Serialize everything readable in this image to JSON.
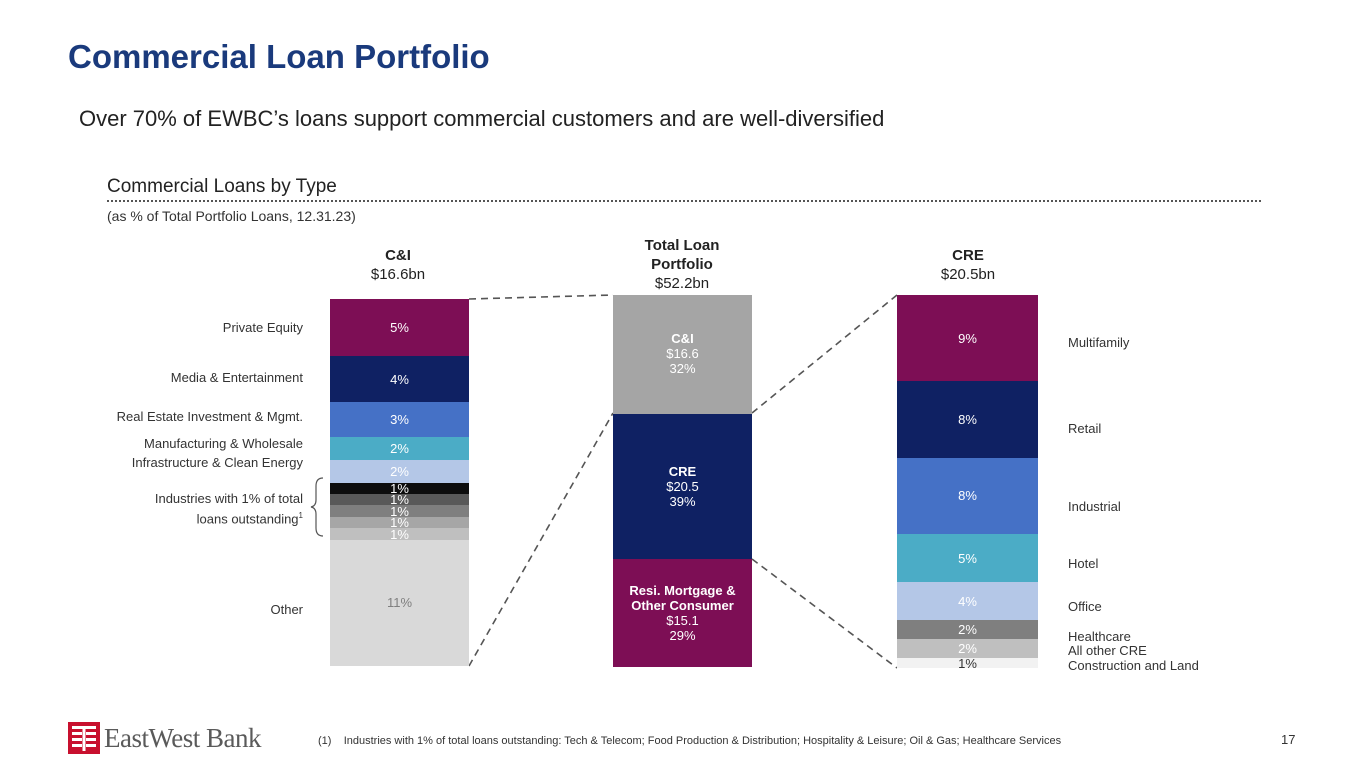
{
  "header": {
    "title": "Commercial Loan Portfolio",
    "subtitle": "Over 70% of EWBC’s loans support commercial customers and are well-diversified"
  },
  "section": {
    "title": "Commercial Loans by Type",
    "note": "(as % of Total Portfolio Loans, 12.31.23)"
  },
  "chart_data": [
    {
      "type": "bar",
      "stacked": true,
      "title": "C&I",
      "amount": "$16.6bn",
      "categories": [
        "Private Equity",
        "Media & Entertainment",
        "Real Estate Investment & Mgmt.",
        "Manufacturing & Wholesale",
        "Infrastructure & Clean Energy",
        "Industries with 1% of total loans outstanding",
        "Industries with 1% of total loans outstanding",
        "Industries with 1% of total loans outstanding",
        "Industries with 1% of total loans outstanding",
        "Industries with 1% of total loans outstanding",
        "Other"
      ],
      "values": [
        5,
        4,
        3,
        2,
        2,
        1,
        1,
        1,
        1,
        1,
        11
      ],
      "value_labels": [
        "5%",
        "4%",
        "3%",
        "2%",
        "2%",
        "1%",
        "1%",
        "1%",
        "1%",
        "1%",
        "11%"
      ],
      "colors": [
        "#7d0e55",
        "#0f2163",
        "#4571c6",
        "#4bacc6",
        "#b4c7e7",
        "#0d0d0d",
        "#595959",
        "#7f7f7f",
        "#a6a6a6",
        "#bfbfbf",
        "#d9d9d9"
      ],
      "text_colors": [
        "#ffffff",
        "#ffffff",
        "#ffffff",
        "#ffffff",
        "#ffffff",
        "#ffffff",
        "#ffffff",
        "#ffffff",
        "#ffffff",
        "#ffffff",
        "#7f7f7f"
      ],
      "labels": {
        "private_equity": "Private Equity",
        "media": "Media & Entertainment",
        "real_estate": "Real Estate Investment & Mgmt.",
        "manufacturing": "Manufacturing & Wholesale",
        "infrastructure": "Infrastructure & Clean Energy",
        "industries_line1": "Industries with 1% of total",
        "industries_line2": "loans outstanding",
        "industries_footnote": "1",
        "other": "Other"
      }
    },
    {
      "type": "bar",
      "stacked": true,
      "title_line1": "Total Loan",
      "title_line2": "Portfolio",
      "amount": "$52.2bn",
      "categories": [
        "C&I",
        "CRE",
        "Resi. Mortgage & Other Consumer"
      ],
      "values": [
        32,
        39,
        29
      ],
      "segments": [
        {
          "name": "C&I",
          "name_line2": "",
          "amount": "$16.6",
          "pct": "32%",
          "color": "#a5a5a5"
        },
        {
          "name": "CRE",
          "name_line2": "",
          "amount": "$20.5",
          "pct": "39%",
          "color": "#0f2163"
        },
        {
          "name": "Resi. Mortgage &",
          "name_line2": "Other Consumer",
          "amount": "$15.1",
          "pct": "29%",
          "color": "#7d0e55"
        }
      ]
    },
    {
      "type": "bar",
      "stacked": true,
      "title": "CRE",
      "amount": "$20.5bn",
      "categories": [
        "Multifamily",
        "Retail",
        "Industrial",
        "Hotel",
        "Office",
        "Healthcare",
        "All other CRE",
        "Construction and Land"
      ],
      "values": [
        9,
        8,
        8,
        5,
        4,
        2,
        2,
        1
      ],
      "value_labels": [
        "9%",
        "8%",
        "8%",
        "5%",
        "4%",
        "2%",
        "2%",
        "1%"
      ],
      "colors": [
        "#7d0e55",
        "#0f2163",
        "#4571c6",
        "#4bacc6",
        "#b4c7e7",
        "#7f7f7f",
        "#bfbfbf",
        "#f2f2f2"
      ],
      "text_colors": [
        "#ffffff",
        "#ffffff",
        "#ffffff",
        "#ffffff",
        "#ffffff",
        "#ffffff",
        "#ffffff",
        "#333333"
      ]
    }
  ],
  "footer": {
    "logo_text": "EastWest Bank",
    "footnote_marker": "(1)",
    "footnote_text": "Industries with 1% of total loans outstanding: Tech & Telecom; Food Production & Distribution; Hospitality & Leisure; Oil & Gas; Healthcare Services",
    "page_number": "17"
  }
}
